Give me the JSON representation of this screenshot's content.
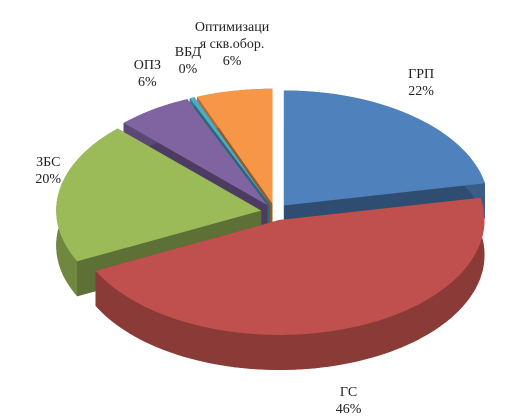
{
  "chart_data": {
    "type": "pie3d",
    "categories": [
      "ГРП",
      "ГС",
      "ЗБС",
      "ОПЗ",
      "ВБД",
      "Оптимизация скв.обор."
    ],
    "values": [
      22,
      46,
      20,
      6,
      0.4,
      6
    ],
    "value_labels": [
      "22%",
      "46%",
      "20%",
      "6%",
      "0%",
      "6%"
    ],
    "colors": [
      "#4f81bd",
      "#c0504d",
      "#9bbb59",
      "#8064a2",
      "#4bacc6",
      "#f79646"
    ]
  }
}
